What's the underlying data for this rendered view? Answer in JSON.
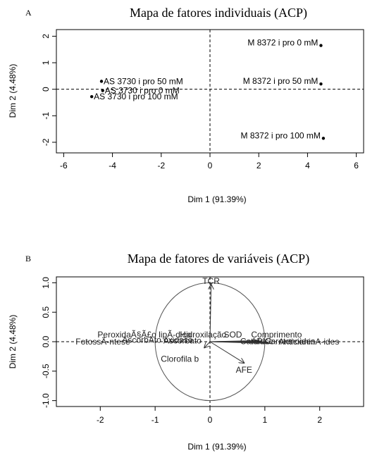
{
  "chart_data": [
    {
      "type": "scatter",
      "panel_letter": "A",
      "title": "Mapa de fatores individuais (ACP)",
      "xlabel": "Dim 1 (91.39%)",
      "ylabel": "Dim 2 (4.48%)",
      "xlim": [
        -6.3,
        6.3
      ],
      "ylim": [
        -2.4,
        2.25
      ],
      "xticks": [
        "-6",
        "-4",
        "-2",
        "0",
        "2",
        "4",
        "6"
      ],
      "yticks": [
        "-2",
        "-1",
        "0",
        "1",
        "2"
      ],
      "points": [
        {
          "label": "AS 3730 i pro 50 mM",
          "x": -4.45,
          "y": 0.3
        },
        {
          "label": "AS 3730 i pro 0 mM",
          "x": -4.4,
          "y": -0.05
        },
        {
          "label": "AS 3730 i pro 100 mM",
          "x": -4.85,
          "y": -0.28
        },
        {
          "label": "M 8372 i pro 0 mM",
          "x": 4.55,
          "y": 1.65
        },
        {
          "label": "M 8372 i pro 50 mM",
          "x": 4.55,
          "y": 0.2
        },
        {
          "label": "M 8372 i pro 100 mM",
          "x": 4.65,
          "y": -1.85
        }
      ]
    },
    {
      "type": "scatter",
      "panel_letter": "B",
      "title": "Mapa de fatores de variáveis (ACP)",
      "xlabel": "Dim 1 (91.39%)",
      "ylabel": "Dim 2 (4.48%)",
      "xlim": [
        -2.8,
        2.8
      ],
      "ylim": [
        -1.1,
        1.1
      ],
      "xticks": [
        "-2",
        "-1",
        "0",
        "1",
        "2"
      ],
      "yticks": [
        "-1.0",
        "-0.5",
        "0.0",
        "0.5",
        "1.0"
      ],
      "arrows": [
        {
          "label": "TCR",
          "x": 0.02,
          "y": 0.97
        },
        {
          "label": "AFE",
          "x": 0.62,
          "y": -0.36
        },
        {
          "label": "Clorofila b",
          "x": -0.1,
          "y": -0.1
        }
      ],
      "overlapping_labels_left": [
        "PeroxidaÃ§Ã£o lipÃ-dica",
        "FotossÃ-ntese",
        "AscorbAto oxidase",
        "Ascorbato",
        "Hidroxilação"
      ],
      "overlapping_labels_right": [
        "SOD",
        "Comprimento",
        "Catalase",
        "APX",
        "Carotenoides",
        "AnticianinA-ides"
      ]
    }
  ]
}
